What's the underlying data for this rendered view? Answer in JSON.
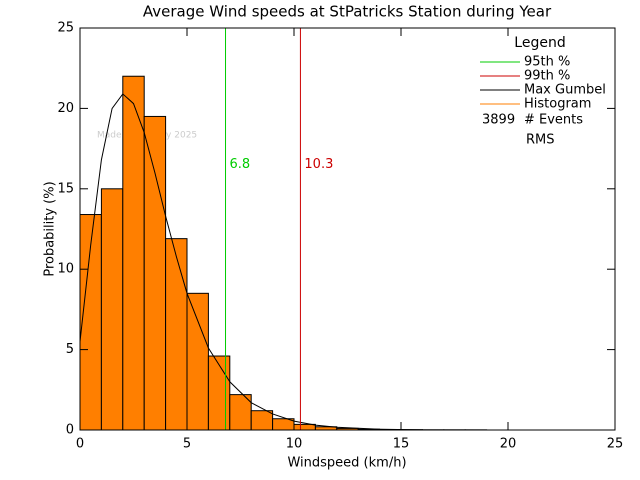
{
  "chart_data": {
    "type": "histogram",
    "title": "Average Wind speeds at StPatricks Station during Year",
    "x_label": "Windspeed (km/h)",
    "y_label": "Probability (%)",
    "watermark": "Made on 29 May 2025",
    "xlim": [
      0,
      25
    ],
    "xticks": [
      0,
      5,
      10,
      15,
      20,
      25
    ],
    "ylim": [
      0,
      25
    ],
    "yticks": [
      0,
      5,
      10,
      15,
      20,
      25
    ],
    "bins": [
      0,
      1,
      2,
      3,
      4,
      5,
      6,
      7,
      8,
      9,
      10,
      11,
      12,
      13,
      14,
      15,
      16,
      17,
      18,
      19,
      20
    ],
    "values": [
      13.4,
      15.0,
      22.0,
      19.5,
      11.9,
      8.5,
      4.6,
      2.2,
      1.2,
      0.7,
      0.35,
      0.2,
      0.1,
      0.05,
      0.03,
      0.02,
      0.01,
      0.01,
      0.01,
      0.0
    ],
    "histogram_name": "Histogram",
    "histogram_color": "#ff7f00",
    "fit": {
      "name": "Max Gumbel",
      "color": "#000000",
      "x": [
        0,
        0.5,
        1,
        1.5,
        2,
        2.5,
        3,
        3.5,
        4,
        4.5,
        5,
        6,
        7,
        8,
        9,
        10,
        11,
        12,
        14,
        16,
        19
      ],
      "y": [
        5.5,
        11.5,
        16.8,
        20.0,
        20.9,
        20.3,
        18.5,
        16.0,
        13.3,
        10.8,
        8.5,
        5.1,
        3.0,
        1.7,
        1.0,
        0.55,
        0.3,
        0.17,
        0.05,
        0.01,
        0.0
      ]
    },
    "percentile_lines": [
      {
        "name": "95th %",
        "color": "#00cc00",
        "value": 6.8
      },
      {
        "name": "99th %",
        "color": "#cc0000",
        "value": 10.3
      }
    ],
    "legend_title": "Legend",
    "events": 3899,
    "events_label": "# Events",
    "rms_label": "RMS"
  }
}
